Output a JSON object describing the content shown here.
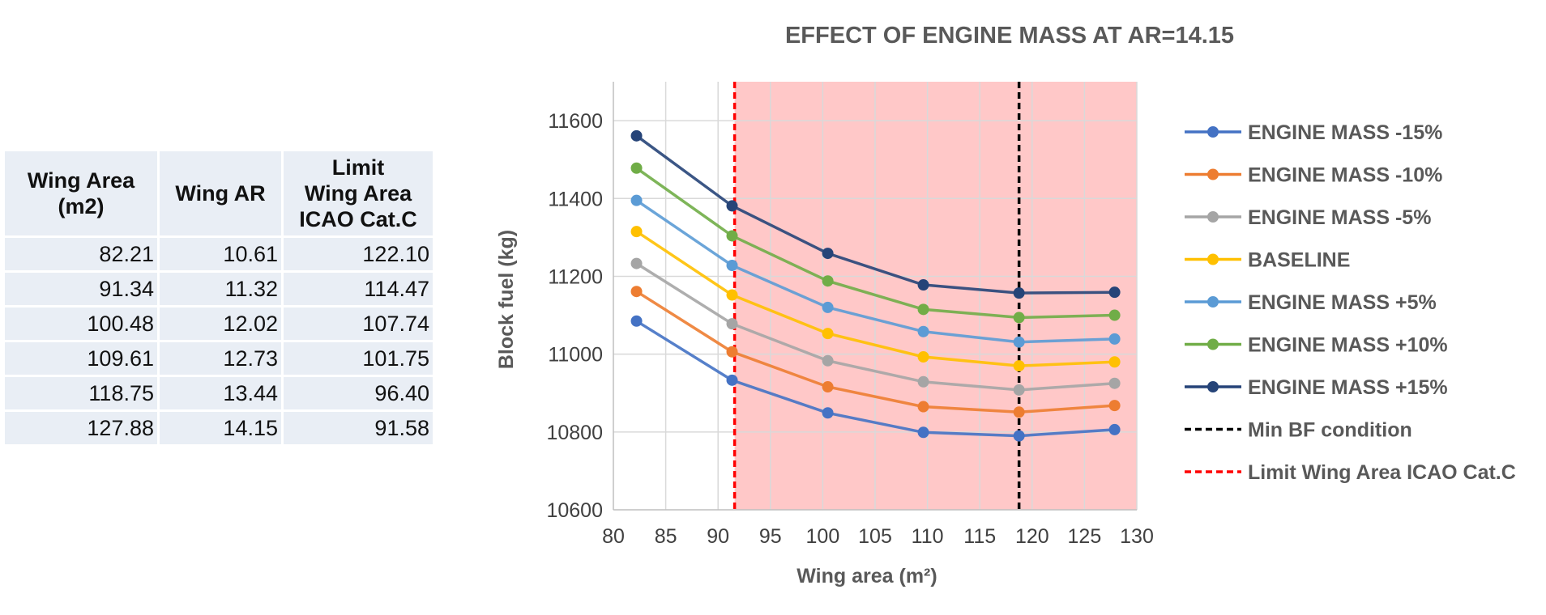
{
  "table": {
    "headers": [
      [
        "Wing Area",
        "(m2)"
      ],
      [
        "Wing AR"
      ],
      [
        "Limit",
        "Wing Area",
        "ICAO Cat.C"
      ]
    ],
    "rows": [
      [
        "82.21",
        "10.61",
        "122.10"
      ],
      [
        "91.34",
        "11.32",
        "114.47"
      ],
      [
        "100.48",
        "12.02",
        "107.74"
      ],
      [
        "109.61",
        "12.73",
        "101.75"
      ],
      [
        "118.75",
        "13.44",
        "96.40"
      ],
      [
        "127.88",
        "14.15",
        "91.58"
      ]
    ]
  },
  "chart_data": {
    "type": "line",
    "title": "EFFECT OF ENGINE MASS AT AR=14.15",
    "xlabel": "Wing area (m²)",
    "ylabel": "Block fuel (kg)",
    "xlim": [
      80,
      130
    ],
    "ylim": [
      10600,
      11700
    ],
    "xticks": [
      "80",
      "85",
      "90",
      "95",
      "100",
      "105",
      "110",
      "115",
      "120",
      "125",
      "130"
    ],
    "yticks": [
      "10600",
      "10800",
      "11000",
      "11200",
      "11400",
      "11600"
    ],
    "grid": true,
    "legend_position": "right",
    "x": [
      82.21,
      91.34,
      100.48,
      109.61,
      118.75,
      127.88
    ],
    "series": [
      {
        "name": "ENGINE MASS -15%",
        "color": "#4472c4",
        "values": [
          11085,
          10933,
          10849,
          10799,
          10790,
          10806
        ]
      },
      {
        "name": "ENGINE MASS -10%",
        "color": "#ed7d31",
        "values": [
          11161,
          11006,
          10916,
          10865,
          10851,
          10868
        ]
      },
      {
        "name": "ENGINE MASS -5%",
        "color": "#a5a5a5",
        "values": [
          11233,
          11078,
          10983,
          10929,
          10908,
          10925
        ]
      },
      {
        "name": "BASELINE",
        "color": "#ffc000",
        "values": [
          11315,
          11152,
          11053,
          10993,
          10970,
          10980
        ]
      },
      {
        "name": "ENGINE MASS +5%",
        "color": "#5b9bd5",
        "values": [
          11395,
          11228,
          11120,
          11058,
          11031,
          11039
        ]
      },
      {
        "name": "ENGINE MASS +10%",
        "color": "#70ad47",
        "values": [
          11478,
          11304,
          11188,
          11115,
          11094,
          11100
        ]
      },
      {
        "name": "ENGINE MASS +15%",
        "color": "#264478",
        "values": [
          11561,
          11381,
          11259,
          11178,
          11157,
          11159
        ]
      }
    ],
    "vlines": [
      {
        "name": "Min BF condition",
        "x": 118.75,
        "color": "#000000"
      },
      {
        "name": "Limit Wing Area ICAO Cat.C",
        "x": 91.58,
        "color": "#ff0000"
      }
    ],
    "shaded_region": {
      "x_from": 91.58,
      "x_to": 130,
      "color": "#ffc8c8"
    }
  }
}
